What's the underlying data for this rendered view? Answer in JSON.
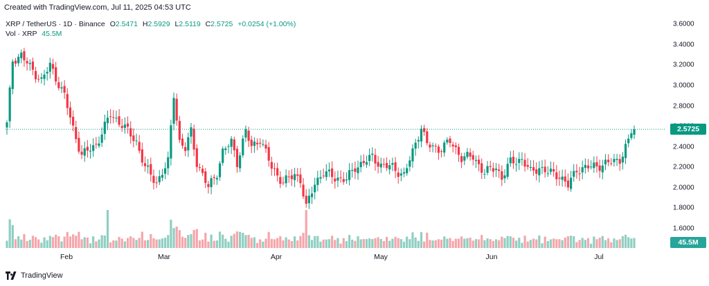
{
  "caption": "Created with TradingView.com, Jul 11, 2025 04:53 UTC",
  "footer_brand": "TradingView",
  "legend": {
    "symbol": "XRP / TetherUS · 1D · Binance",
    "o_label": "O",
    "o": "2.5471",
    "h_label": "H",
    "h": "2.5929",
    "l_label": "L",
    "l": "2.5119",
    "c_label": "C",
    "c": "2.5725",
    "change": "+0.0254 (+1.00%)",
    "vol_label": "Vol · XRP",
    "vol": "45.5M"
  },
  "colors": {
    "up": "#089981",
    "down": "#f23645",
    "vol_up": "#8fcfc2",
    "vol_down": "#f5a6ab"
  },
  "chart_data": {
    "type": "candlestick",
    "ylim": [
      1.45,
      3.65
    ],
    "yticks": [
      "3.6000",
      "3.4000",
      "3.2000",
      "3.0000",
      "2.8000",
      "2.6000",
      "2.4000",
      "2.2000",
      "2.0000",
      "1.8000",
      "1.6000"
    ],
    "last_price": "2.5725",
    "last_volume": "45.5M",
    "x_month_labels": [
      "Feb",
      "Mar",
      "Apr",
      "May",
      "Jun",
      "Jul"
    ],
    "keypoints": [
      {
        "d": 0,
        "c": 2.62
      },
      {
        "d": 2,
        "c": 3.25
      },
      {
        "d": 5,
        "c": 3.3
      },
      {
        "d": 8,
        "c": 3.18
      },
      {
        "d": 12,
        "c": 3.05
      },
      {
        "d": 15,
        "c": 3.2
      },
      {
        "d": 20,
        "c": 2.9
      },
      {
        "d": 23,
        "c": 2.58
      },
      {
        "d": 26,
        "c": 2.32
      },
      {
        "d": 31,
        "c": 2.42
      },
      {
        "d": 36,
        "c": 2.72
      },
      {
        "d": 40,
        "c": 2.62
      },
      {
        "d": 45,
        "c": 2.45
      },
      {
        "d": 48,
        "c": 2.2
      },
      {
        "d": 52,
        "c": 2.05
      },
      {
        "d": 56,
        "c": 2.25
      },
      {
        "d": 58,
        "c": 2.92
      },
      {
        "d": 60,
        "c": 2.45
      },
      {
        "d": 62,
        "c": 2.38
      },
      {
        "d": 64,
        "c": 2.55
      },
      {
        "d": 66,
        "c": 2.25
      },
      {
        "d": 70,
        "c": 2.0
      },
      {
        "d": 73,
        "c": 2.15
      },
      {
        "d": 75,
        "c": 2.35
      },
      {
        "d": 78,
        "c": 2.45
      },
      {
        "d": 80,
        "c": 2.25
      },
      {
        "d": 83,
        "c": 2.55
      },
      {
        "d": 85,
        "c": 2.4
      },
      {
        "d": 88,
        "c": 2.48
      },
      {
        "d": 92,
        "c": 2.2
      },
      {
        "d": 96,
        "c": 2.05
      },
      {
        "d": 100,
        "c": 2.13
      },
      {
        "d": 102,
        "c": 2.08
      },
      {
        "d": 104,
        "c": 1.8
      },
      {
        "d": 107,
        "c": 2.05
      },
      {
        "d": 110,
        "c": 2.15
      },
      {
        "d": 114,
        "c": 2.1
      },
      {
        "d": 118,
        "c": 2.08
      },
      {
        "d": 121,
        "c": 2.2
      },
      {
        "d": 124,
        "c": 2.25
      },
      {
        "d": 127,
        "c": 2.3
      },
      {
        "d": 130,
        "c": 2.22
      },
      {
        "d": 134,
        "c": 2.2
      },
      {
        "d": 138,
        "c": 2.12
      },
      {
        "d": 141,
        "c": 2.35
      },
      {
        "d": 143,
        "c": 2.52
      },
      {
        "d": 144,
        "c": 2.6
      },
      {
        "d": 146,
        "c": 2.42
      },
      {
        "d": 150,
        "c": 2.38
      },
      {
        "d": 154,
        "c": 2.45
      },
      {
        "d": 158,
        "c": 2.3
      },
      {
        "d": 162,
        "c": 2.3
      },
      {
        "d": 166,
        "c": 2.15
      },
      {
        "d": 170,
        "c": 2.2
      },
      {
        "d": 172,
        "c": 2.1
      },
      {
        "d": 175,
        "c": 2.25
      },
      {
        "d": 179,
        "c": 2.28
      },
      {
        "d": 182,
        "c": 2.15
      },
      {
        "d": 185,
        "c": 2.2
      },
      {
        "d": 188,
        "c": 2.15
      },
      {
        "d": 192,
        "c": 2.12
      },
      {
        "d": 195,
        "c": 2.02
      },
      {
        "d": 198,
        "c": 2.18
      },
      {
        "d": 202,
        "c": 2.2
      },
      {
        "d": 206,
        "c": 2.22
      },
      {
        "d": 210,
        "c": 2.25
      },
      {
        "d": 213,
        "c": 2.28
      },
      {
        "d": 216,
        "c": 2.45
      },
      {
        "d": 217,
        "c": 2.55
      },
      {
        "d": 218,
        "c": 2.5725
      }
    ],
    "volume_range": [
      0,
      200
    ]
  }
}
